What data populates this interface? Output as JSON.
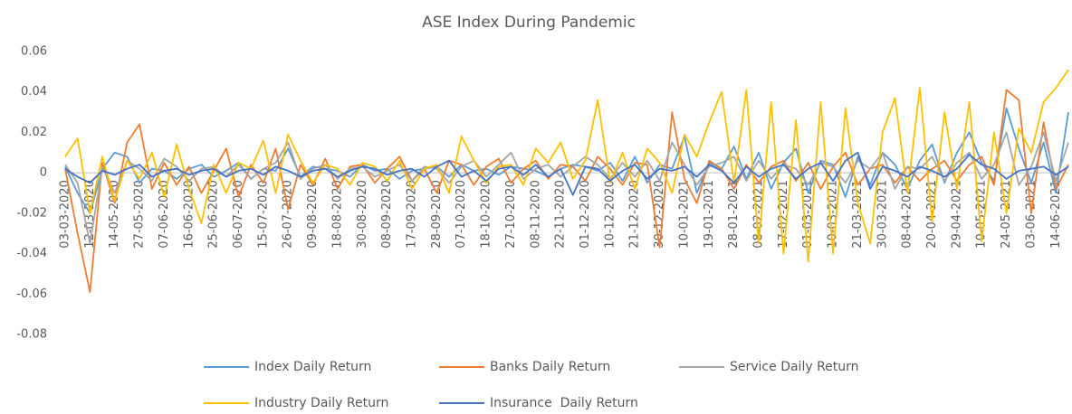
{
  "chart_data": {
    "type": "line",
    "title": "ASE Index During Pandemic",
    "categories": [
      "03-03-2020",
      null,
      "12-03-2020",
      null,
      "14-05-2020",
      null,
      "27-05-2020",
      null,
      "07-06-2020",
      null,
      "16-06-2020",
      null,
      "25-06-2020",
      null,
      "06-07-2020",
      null,
      "15-07-2020",
      null,
      "26-07-2020",
      null,
      "09-08-2020",
      null,
      "18-08-2020",
      null,
      "30-08-2020",
      null,
      "08-09-2020",
      null,
      "17-09-2020",
      null,
      "28-09-2020",
      null,
      "07-10-2020",
      null,
      "18-10-2020",
      null,
      "27-10-2020",
      null,
      "08-11-2020",
      null,
      "22-11-2020",
      null,
      "01-12-2020",
      null,
      "10-12-2020",
      null,
      "21-12-2020",
      null,
      "30-12-2020",
      null,
      "10-01-2021",
      null,
      "19-01-2021",
      null,
      "28-01-2021",
      null,
      "08-02-2021",
      null,
      "17-02-2021",
      null,
      "01-03-2021",
      null,
      "10-03-2021",
      null,
      "21-03-2021",
      null,
      "30-03-2021",
      null,
      "08-04-2021",
      null,
      "20-04-2021",
      null,
      "29-04-2021",
      null,
      "10-05-2021",
      null,
      "24-05-2021",
      null,
      "03-06-2021",
      null,
      "14-06-2021",
      null
    ],
    "series": [
      {
        "name": "Index Daily Return",
        "color": "#5b9bd5",
        "values": [
          0.003,
          -0.01,
          -0.02,
          0.002,
          0.01,
          0.008,
          -0.005,
          0.002,
          0.001,
          -0.003,
          0.002,
          0.004,
          -0.002,
          0.001,
          0.005,
          -0.003,
          0.002,
          0.001,
          0.012,
          -0.002,
          0.003,
          0.002,
          0.001,
          -0.002,
          0.004,
          0.001,
          0.002,
          -0.003,
          0.001,
          0.002,
          0.003,
          -0.002,
          0.004,
          0.001,
          0.002,
          -0.001,
          0.003,
          0.002,
          0.001,
          -0.002,
          0.002,
          0.004,
          0.003,
          0.001,
          0.005,
          -0.004,
          0.008,
          -0.005,
          0.004,
          0.002,
          0.018,
          -0.01,
          0.005,
          0.002,
          0.013,
          -0.003,
          0.01,
          -0.008,
          0.005,
          0.012,
          -0.01,
          0.006,
          0.004,
          -0.012,
          0.008,
          -0.006,
          0.01,
          0.004,
          -0.008,
          0.006,
          0.014,
          -0.005,
          0.01,
          0.02,
          0.005,
          -0.004,
          0.032,
          0.012,
          -0.005,
          0.015,
          -0.01,
          0.03
        ]
      },
      {
        "name": "Banks Daily Return",
        "color": "#ed7d31",
        "values": [
          0.002,
          -0.03,
          -0.059,
          0.005,
          -0.015,
          0.015,
          0.024,
          -0.008,
          0.005,
          -0.006,
          0.003,
          -0.01,
          0.001,
          0.012,
          -0.012,
          0.004,
          -0.005,
          0.012,
          -0.018,
          0.004,
          -0.006,
          0.007,
          -0.008,
          0.003,
          0.004,
          -0.005,
          0.002,
          0.008,
          -0.004,
          0.002,
          -0.01,
          0.006,
          0.004,
          -0.006,
          0.003,
          0.007,
          -0.005,
          0.002,
          0.006,
          -0.003,
          0.004,
          0.003,
          -0.004,
          0.008,
          0.002,
          -0.006,
          0.005,
          0.004,
          -0.037,
          0.03,
          -0.003,
          -0.015,
          0.006,
          0.002,
          -0.008,
          0.004,
          -0.005,
          0.003,
          0.006,
          -0.004,
          0.005,
          -0.008,
          0.003,
          0.01,
          -0.006,
          0.002,
          0.004,
          -0.005,
          0.003,
          -0.004,
          0.002,
          0.006,
          -0.004,
          0.004,
          0.008,
          -0.006,
          0.041,
          0.036,
          -0.02,
          0.025,
          -0.008,
          0.004
        ]
      },
      {
        "name": "Service Daily Return",
        "color": "#a5a5a5",
        "values": [
          0.004,
          -0.005,
          -0.035,
          0.003,
          -0.01,
          0.006,
          0.002,
          -0.004,
          0.007,
          0.003,
          -0.004,
          0.002,
          0.003,
          -0.002,
          0.004,
          -0.003,
          0.002,
          0.005,
          0.015,
          -0.003,
          0.002,
          0.004,
          -0.003,
          0.002,
          0.003,
          -0.002,
          0.001,
          0.004,
          -0.004,
          0.003,
          0.002,
          -0.005,
          0.003,
          0.006,
          -0.002,
          0.004,
          0.01,
          -0.003,
          0.002,
          0.004,
          -0.002,
          0.003,
          0.008,
          0.004,
          -0.003,
          0.005,
          -0.002,
          0.006,
          -0.004,
          0.015,
          0.004,
          -0.006,
          0.003,
          0.005,
          0.008,
          -0.004,
          0.006,
          -0.003,
          0.004,
          0.002,
          -0.006,
          0.005,
          0.003,
          -0.005,
          0.006,
          0.002,
          0.01,
          -0.008,
          0.003,
          0.002,
          0.008,
          -0.004,
          0.005,
          0.01,
          -0.003,
          0.004,
          0.02,
          -0.006,
          0.003,
          0.02,
          -0.004,
          0.015
        ]
      },
      {
        "name": "Industry Daily Return",
        "color": "#ffc000",
        "values": [
          0.008,
          0.017,
          -0.02,
          0.008,
          -0.014,
          0.006,
          -0.003,
          0.01,
          -0.012,
          0.014,
          -0.008,
          -0.025,
          0.004,
          -0.01,
          0.005,
          0.002,
          0.016,
          -0.01,
          0.019,
          0.006,
          -0.005,
          0.004,
          0.002,
          -0.006,
          0.005,
          0.003,
          -0.004,
          0.006,
          -0.008,
          0.002,
          0.004,
          -0.01,
          0.018,
          0.006,
          -0.005,
          0.003,
          0.004,
          -0.006,
          0.012,
          0.005,
          0.015,
          -0.003,
          0.006,
          0.036,
          -0.005,
          0.01,
          -0.008,
          0.012,
          0.005,
          -0.01,
          0.019,
          0.008,
          0.025,
          0.04,
          -0.005,
          0.041,
          -0.035,
          0.035,
          -0.04,
          0.026,
          -0.044,
          0.035,
          -0.04,
          0.032,
          -0.015,
          -0.035,
          0.02,
          0.037,
          -0.01,
          0.042,
          -0.024,
          0.03,
          -0.008,
          0.035,
          -0.034,
          0.02,
          -0.02,
          0.022,
          0.01,
          0.035,
          0.042,
          0.051
        ]
      },
      {
        "name": "Insurance  Daily Return",
        "color": "#4472c4",
        "values": [
          0.002,
          -0.002,
          -0.005,
          0.001,
          -0.001,
          0.002,
          0.004,
          -0.002,
          0.001,
          0.002,
          -0.001,
          0.001,
          0.002,
          -0.002,
          0.001,
          0.002,
          -0.001,
          0.003,
          0.001,
          -0.002,
          0.001,
          0.002,
          -0.002,
          0.001,
          0.003,
          0.002,
          -0.001,
          0.001,
          0.002,
          -0.002,
          0.003,
          0.006,
          -0.002,
          0.001,
          -0.004,
          0.002,
          0.003,
          -0.001,
          0.004,
          -0.002,
          0.002,
          -0.011,
          0.003,
          0.002,
          -0.004,
          0.001,
          0.004,
          -0.003,
          0.002,
          0.001,
          0.003,
          -0.002,
          0.004,
          0.001,
          -0.005,
          0.003,
          -0.002,
          0.002,
          0.004,
          -0.003,
          0.002,
          0.005,
          -0.004,
          0.006,
          0.01,
          -0.008,
          0.003,
          0.001,
          -0.002,
          0.003,
          0.001,
          -0.002,
          0.002,
          0.009,
          0.004,
          0.002,
          -0.003,
          0.001,
          0.002,
          0.003,
          -0.001,
          0.003
        ]
      }
    ],
    "ylim": [
      -0.08,
      0.06
    ],
    "yticks": [
      0.06,
      0.04,
      0.02,
      0,
      -0.02,
      -0.04,
      -0.06,
      -0.08
    ],
    "grid": false,
    "legend": "bottom"
  }
}
